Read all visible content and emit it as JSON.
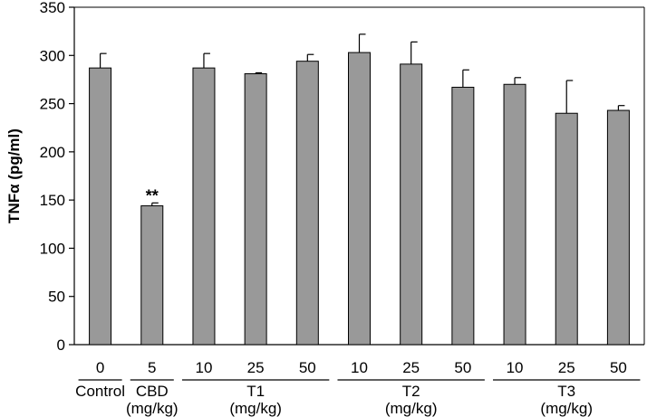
{
  "chart_data": {
    "type": "bar",
    "ylabel": "TNFα (pg/ml)",
    "ylim": [
      0,
      350
    ],
    "yticks": [
      0,
      50,
      100,
      150,
      200,
      250,
      300,
      350
    ],
    "grid": false,
    "bar_color": "#999999",
    "categories": [
      "0",
      "5",
      "10",
      "25",
      "50",
      "10",
      "25",
      "50",
      "10",
      "25",
      "50"
    ],
    "values": [
      287,
      144,
      287,
      281,
      294,
      303,
      291,
      267,
      270,
      240,
      243
    ],
    "errors": [
      15,
      3,
      15,
      1,
      7,
      19,
      23,
      18,
      7,
      34,
      5
    ],
    "annotations": [
      {
        "index": 1,
        "text": "**"
      }
    ],
    "groups": [
      {
        "lines": [
          "Control"
        ],
        "start": 0,
        "end": 0
      },
      {
        "lines": [
          "CBD",
          "(mg/kg)"
        ],
        "start": 1,
        "end": 1
      },
      {
        "lines": [
          "T1",
          "(mg/kg)"
        ],
        "start": 2,
        "end": 4
      },
      {
        "lines": [
          "T2",
          "(mg/kg)"
        ],
        "start": 5,
        "end": 7
      },
      {
        "lines": [
          "T3",
          "(mg/kg)"
        ],
        "start": 8,
        "end": 10
      }
    ]
  }
}
